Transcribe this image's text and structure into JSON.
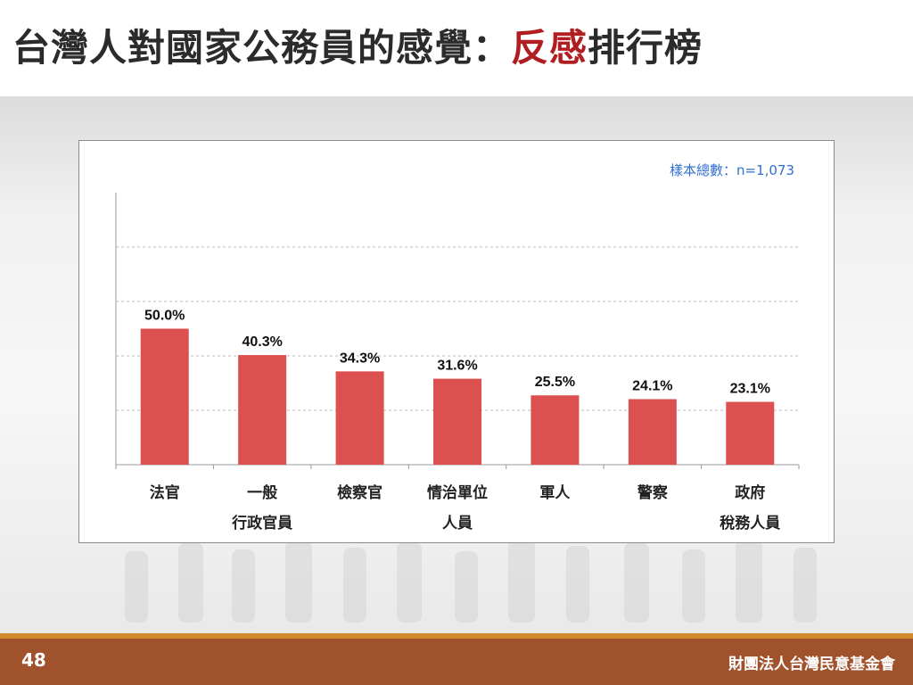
{
  "slide": {
    "title_part1": "台灣人對國家公務員的感覺：",
    "title_accent": "反感",
    "title_part2": "排行榜",
    "page_number": "48",
    "organization": "財團法人台灣民意基金會"
  },
  "chart_data": {
    "type": "bar",
    "note": "樣本總數：n=1,073",
    "categories": [
      [
        "法官"
      ],
      [
        "一般",
        "行政官員"
      ],
      [
        "檢察官"
      ],
      [
        "情治單位",
        "人員"
      ],
      [
        "軍人"
      ],
      [
        "警察"
      ],
      [
        "政府",
        "稅務人員"
      ]
    ],
    "values": [
      50.0,
      40.3,
      34.3,
      31.6,
      25.5,
      24.1,
      23.1
    ],
    "value_labels": [
      "50.0%",
      "40.3%",
      "34.3%",
      "31.6%",
      "25.5%",
      "24.1%",
      "23.1%"
    ],
    "ylim": [
      0,
      100
    ],
    "yticks": [
      20,
      40,
      60,
      80
    ],
    "grid": true,
    "bar_color": "#dc5050"
  },
  "colors": {
    "accent": "#b01e22",
    "note": "#2f6fcf",
    "footer": "#a0522d",
    "footer_rule": "#d18a2e"
  }
}
